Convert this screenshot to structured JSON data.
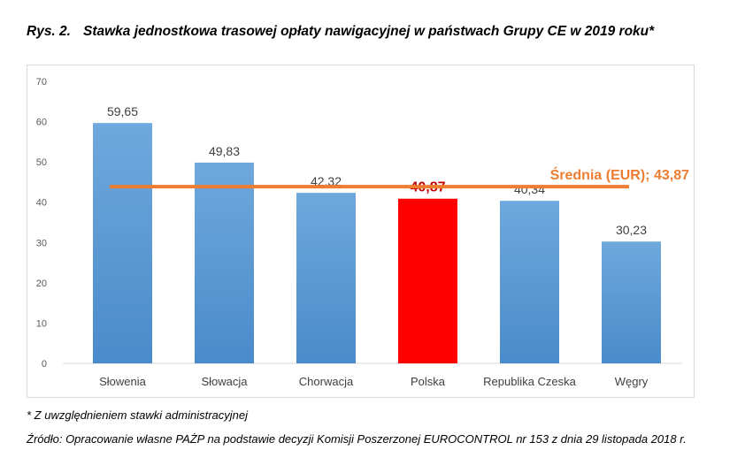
{
  "caption": {
    "label": "Rys. 2.",
    "text": "Stawka jednostkowa trasowej opłaty nawigacyjnej w państwach Grupy CE w 2019 roku*"
  },
  "chart_data": {
    "type": "bar",
    "categories": [
      "Słowenia",
      "Słowacja",
      "Chorwacja",
      "Polska",
      "Republika Czeska",
      "Węgry"
    ],
    "values": [
      59.65,
      49.83,
      42.32,
      40.87,
      40.34,
      30.23
    ],
    "value_labels": [
      "59,65",
      "49,83",
      "42,32",
      "40,87",
      "40,34",
      "30,23"
    ],
    "bar_colors": [
      "#5b9bd5",
      "#5b9bd5",
      "#5b9bd5",
      "#ff0000",
      "#5b9bd5",
      "#5b9bd5"
    ],
    "highlight_label_color": "#c00000",
    "ylim": [
      0,
      70
    ],
    "yticks": [
      0,
      10,
      20,
      30,
      40,
      50,
      60,
      70
    ],
    "average": {
      "value": 43.87,
      "label": "Średnia (EUR); 43,87",
      "color": "#ed7d31"
    },
    "grid": false
  },
  "footnote": "* Z uwzględnieniem stawki administracyjnej",
  "source": "Źródło: Opracowanie własne PAŻP na podstawie decyzji Komisji Poszerzonej EUROCONTROL nr 153 z dnia 29 listopada 2018 r."
}
